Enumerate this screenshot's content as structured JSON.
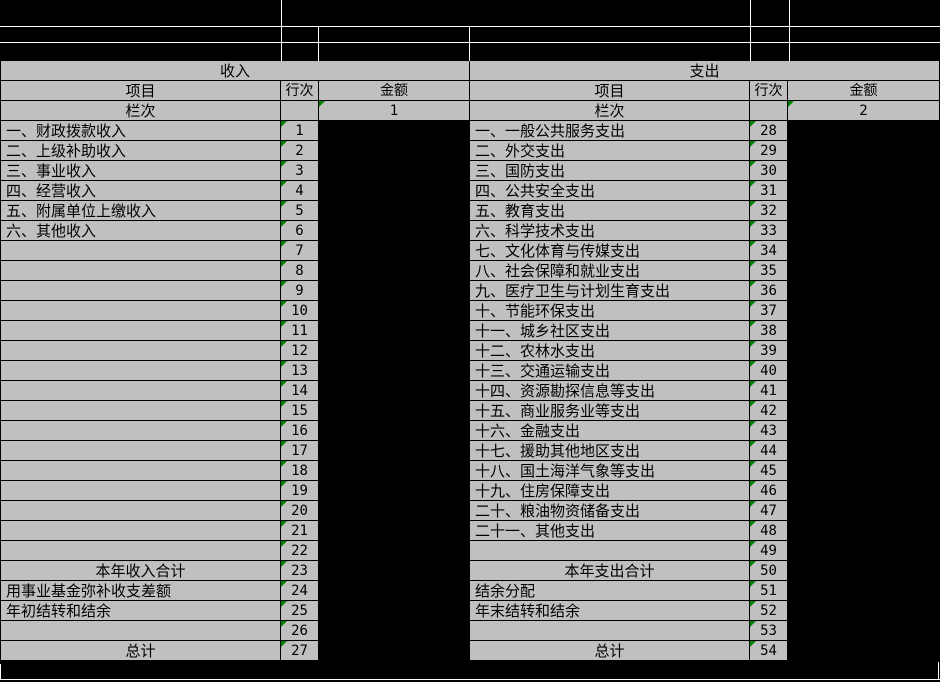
{
  "colors": {
    "cell_bg": "#c0c0c0",
    "band_bg": "#000000",
    "grid_on_black": "#ffffff",
    "grid_on_gray": "#000000",
    "error_triangle": "#008000"
  },
  "icons": {
    "error_indicator": "green-corner-triangle"
  },
  "table": {
    "income": {
      "section_title": "收入",
      "col_item": "项目",
      "col_line": "行次",
      "col_amount": "金额",
      "col_index_label": "栏次",
      "col_index_value": "1",
      "rows": [
        {
          "item": "一、财政拨款收入",
          "line": "1",
          "center": false
        },
        {
          "item": "二、上级补助收入",
          "line": "2",
          "center": false
        },
        {
          "item": "三、事业收入",
          "line": "3",
          "center": false
        },
        {
          "item": "四、经营收入",
          "line": "4",
          "center": false
        },
        {
          "item": "五、附属单位上缴收入",
          "line": "5",
          "center": false
        },
        {
          "item": "六、其他收入",
          "line": "6",
          "center": false
        },
        {
          "item": "",
          "line": "7",
          "center": false
        },
        {
          "item": "",
          "line": "8",
          "center": false
        },
        {
          "item": "",
          "line": "9",
          "center": false
        },
        {
          "item": "",
          "line": "10",
          "center": false
        },
        {
          "item": "",
          "line": "11",
          "center": false
        },
        {
          "item": "",
          "line": "12",
          "center": false
        },
        {
          "item": "",
          "line": "13",
          "center": false
        },
        {
          "item": "",
          "line": "14",
          "center": false
        },
        {
          "item": "",
          "line": "15",
          "center": false
        },
        {
          "item": "",
          "line": "16",
          "center": false
        },
        {
          "item": "",
          "line": "17",
          "center": false
        },
        {
          "item": "",
          "line": "18",
          "center": false
        },
        {
          "item": "",
          "line": "19",
          "center": false
        },
        {
          "item": "",
          "line": "20",
          "center": false
        },
        {
          "item": "",
          "line": "21",
          "center": false
        },
        {
          "item": "",
          "line": "22",
          "center": false
        },
        {
          "item": "本年收入合计",
          "line": "23",
          "center": true
        },
        {
          "item": "用事业基金弥补收支差额",
          "line": "24",
          "center": false
        },
        {
          "item": "年初结转和结余",
          "line": "25",
          "center": false
        },
        {
          "item": "",
          "line": "26",
          "center": false
        },
        {
          "item": "总计",
          "line": "27",
          "center": true
        }
      ]
    },
    "expenditure": {
      "section_title": "支出",
      "col_item": "项目",
      "col_line": "行次",
      "col_amount": "金额",
      "col_index_label": "栏次",
      "col_index_value": "2",
      "rows": [
        {
          "item": "一、一般公共服务支出",
          "line": "28",
          "center": false
        },
        {
          "item": "二、外交支出",
          "line": "29",
          "center": false
        },
        {
          "item": "三、国防支出",
          "line": "30",
          "center": false
        },
        {
          "item": "四、公共安全支出",
          "line": "31",
          "center": false
        },
        {
          "item": "五、教育支出",
          "line": "32",
          "center": false
        },
        {
          "item": "六、科学技术支出",
          "line": "33",
          "center": false
        },
        {
          "item": "七、文化体育与传媒支出",
          "line": "34",
          "center": false
        },
        {
          "item": "八、社会保障和就业支出",
          "line": "35",
          "center": false
        },
        {
          "item": "九、医疗卫生与计划生育支出",
          "line": "36",
          "center": false
        },
        {
          "item": "十、节能环保支出",
          "line": "37",
          "center": false
        },
        {
          "item": "十一、城乡社区支出",
          "line": "38",
          "center": false
        },
        {
          "item": "十二、农林水支出",
          "line": "39",
          "center": false
        },
        {
          "item": "十三、交通运输支出",
          "line": "40",
          "center": false
        },
        {
          "item": "十四、资源勘探信息等支出",
          "line": "41",
          "center": false
        },
        {
          "item": "十五、商业服务业等支出",
          "line": "42",
          "center": false
        },
        {
          "item": "十六、金融支出",
          "line": "43",
          "center": false
        },
        {
          "item": "十七、援助其他地区支出",
          "line": "44",
          "center": false
        },
        {
          "item": "十八、国土海洋气象等支出",
          "line": "45",
          "center": false
        },
        {
          "item": "十九、住房保障支出",
          "line": "46",
          "center": false
        },
        {
          "item": "二十、粮油物资储备支出",
          "line": "47",
          "center": false
        },
        {
          "item": "二十一、其他支出",
          "line": "48",
          "center": false
        },
        {
          "item": "",
          "line": "49",
          "center": false
        },
        {
          "item": "本年支出合计",
          "line": "50",
          "center": true
        },
        {
          "item": "结余分配",
          "line": "51",
          "center": false
        },
        {
          "item": "年末结转和结余",
          "line": "52",
          "center": false
        },
        {
          "item": "",
          "line": "53",
          "center": false
        },
        {
          "item": "总计",
          "line": "54",
          "center": true
        }
      ]
    }
  }
}
